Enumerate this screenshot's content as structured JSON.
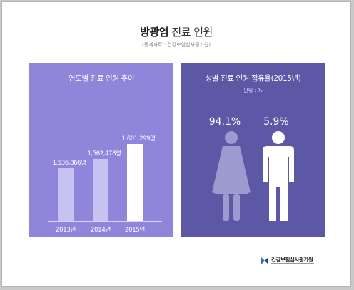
{
  "header": {
    "title_strong": "방광염",
    "title_rest": " 진료 인원",
    "source": "(통계자료 : 건강보험심사평가원)"
  },
  "left_panel": {
    "title": "연도별 진료 인원 추이"
  },
  "right_panel": {
    "title": "성별 진료 인원 점유율(2015년)",
    "unit": "단위 : %"
  },
  "footer": {
    "org_name": "건강보험심사평가원"
  },
  "colors": {
    "left_panel": "#8f86dc",
    "right_panel": "#5c58a6",
    "bar": "#c8c2f2",
    "bar_highlight": "#ffffff",
    "female_figure": "#9d9ad0",
    "male_figure": "#ffffff"
  },
  "chart_data": [
    {
      "type": "bar",
      "title": "연도별 진료 인원 추이",
      "categories": [
        "2013년",
        "2014년",
        "2015년"
      ],
      "values": [
        1536866,
        1562478,
        1601299
      ],
      "value_labels": [
        "1,536,866명",
        "1,562,478명",
        "1,601,299명"
      ],
      "ylim": [
        1400000,
        1640000
      ],
      "grid": false,
      "legend": "none"
    },
    {
      "type": "pictograph",
      "title": "성별 진료 인원 점유율(2015년)",
      "unit": "단위 : %",
      "categories": [
        "female",
        "male"
      ],
      "values": [
        94.1,
        5.9
      ],
      "value_labels": [
        "94.1%",
        "5.9%"
      ]
    }
  ]
}
